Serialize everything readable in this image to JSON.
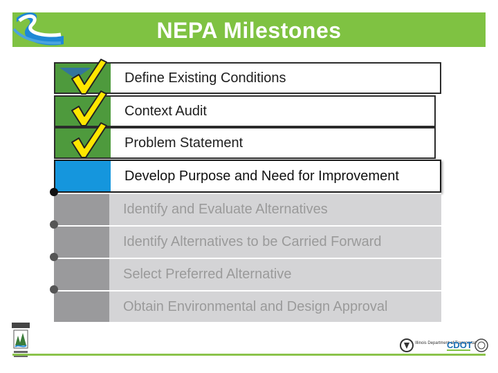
{
  "header": {
    "title": "NEPA Milestones",
    "logo_icon": "river-s-logo-icon",
    "bar_color": "#7fc242"
  },
  "milestones": [
    {
      "label": "Define Existing Conditions",
      "status": "done",
      "checked": true
    },
    {
      "label": "Context Audit",
      "status": "done",
      "checked": true
    },
    {
      "label": "Problem Statement",
      "status": "done",
      "checked": true
    },
    {
      "label": "Develop Purpose and Need for Improvement",
      "status": "current",
      "checked": false
    },
    {
      "label": "Identify and Evaluate Alternatives",
      "status": "future",
      "checked": false
    },
    {
      "label": "Identify Alternatives to be Carried Forward",
      "status": "future",
      "checked": false
    },
    {
      "label": "Select Preferred Alternative",
      "status": "future",
      "checked": false
    },
    {
      "label": "Obtain Environmental and Design Approval",
      "status": "future",
      "checked": false
    }
  ],
  "colors": {
    "done_band": "#4e9a3d",
    "current_band": "#1596dd",
    "future_band": "#9a9a9c",
    "future_fill": "#d4d4d6",
    "check_fill": "#ffe600"
  },
  "footer": {
    "left_badge_icon": "project-badge-icon",
    "partner_logo_icons": [
      "illinois-dot-logo-icon",
      "cdot-logo-icon",
      "chicago-seal-icon"
    ],
    "partner_text_idot": "Illinois Department of Transportation",
    "partner_text_cdot": "CDOT"
  }
}
